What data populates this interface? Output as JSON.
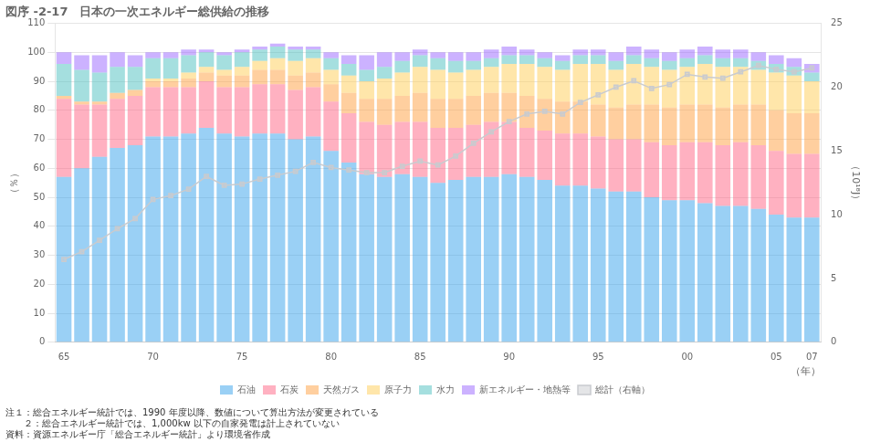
{
  "chart_data": {
    "type": "bar",
    "title": "図序 -2-17　日本の一次エネルギー総供給の推移",
    "x_label": "（年）",
    "y_label": "（％）",
    "y2_label": "（10¹⁸J）",
    "annotations": [
      "注１：総合エネルギー統計では、1990 年度以降、数値について算出方法が変更されている",
      "　　２：総合エネルギー統計では、1,000kw 以下の自家発電は計上されていない",
      "資料：資源エネルギー庁「総合エネルギー統計」より環境省作成"
    ],
    "categories": [
      "65",
      null,
      null,
      null,
      null,
      "70",
      null,
      null,
      null,
      null,
      "75",
      null,
      null,
      null,
      null,
      "80",
      null,
      null,
      null,
      null,
      "85",
      null,
      null,
      null,
      null,
      "90",
      null,
      null,
      null,
      null,
      "95",
      null,
      null,
      null,
      null,
      "00",
      null,
      null,
      null,
      null,
      "05",
      null,
      "07"
    ],
    "series": [
      {
        "name": "石油",
        "values": [
          57,
          60,
          64,
          67,
          68,
          71,
          71,
          72,
          74,
          72,
          71,
          72,
          72,
          70,
          71,
          66,
          62,
          58,
          57,
          58,
          57,
          55,
          56,
          57,
          57,
          58,
          57,
          56,
          54,
          54,
          53,
          52,
          52,
          50,
          49,
          49,
          48,
          47,
          47,
          46,
          44,
          43,
          43
        ]
      },
      {
        "name": "石炭",
        "values": [
          27,
          22,
          18,
          17,
          17,
          17,
          17,
          16,
          16,
          16,
          17,
          17,
          17,
          17,
          17,
          17,
          17,
          18,
          18,
          18,
          19,
          19,
          18,
          18,
          19,
          18,
          17,
          17,
          18,
          18,
          18,
          18,
          18,
          19,
          19,
          20,
          21,
          21,
          22,
          22,
          22,
          22,
          22
        ]
      },
      {
        "name": "天然ガス",
        "values": [
          1,
          1,
          1,
          2,
          2,
          2,
          2,
          3,
          3,
          4,
          4,
          5,
          5,
          5,
          5,
          6,
          7,
          8,
          9,
          9,
          10,
          10,
          10,
          10,
          10,
          10,
          11,
          11,
          11,
          11,
          11,
          11,
          12,
          13,
          13,
          13,
          13,
          13,
          13,
          14,
          14,
          14,
          14
        ]
      },
      {
        "name": "原子力",
        "values": [
          0,
          0,
          0,
          0,
          0,
          1,
          1,
          2,
          2,
          2,
          3,
          3,
          4,
          5,
          5,
          5,
          6,
          6,
          7,
          8,
          9,
          10,
          9,
          9,
          9,
          10,
          11,
          11,
          11,
          13,
          14,
          13,
          14,
          13,
          13,
          13,
          14,
          14,
          13,
          12,
          13,
          13,
          11
        ]
      },
      {
        "name": "水力",
        "values": [
          11,
          11,
          10,
          9,
          8,
          7,
          7,
          6,
          5,
          5,
          5,
          4,
          4,
          4,
          3,
          4,
          4,
          4,
          4,
          4,
          4,
          4,
          4,
          3,
          3,
          3,
          3,
          3,
          3,
          3,
          3,
          3,
          3,
          3,
          3,
          3,
          3,
          3,
          3,
          3,
          3,
          3,
          3
        ]
      },
      {
        "name": "新エネルギー・地熱等",
        "values": [
          4,
          5,
          6,
          5,
          4,
          2,
          2,
          2,
          1,
          1,
          1,
          1,
          1,
          1,
          1,
          2,
          3,
          5,
          5,
          3,
          2,
          2,
          3,
          3,
          3,
          3,
          2,
          2,
          2,
          2,
          2,
          3,
          3,
          3,
          3,
          3,
          3,
          3,
          3,
          3,
          3,
          3,
          3
        ]
      },
      {
        "name": "総計（右軸）",
        "type": "line",
        "axis": "y2",
        "marker": "square",
        "line_style": "solid",
        "values": [
          6.5,
          7.1,
          8.0,
          8.9,
          9.7,
          11.2,
          11.5,
          12.0,
          13.0,
          12.3,
          12.4,
          12.8,
          13.1,
          13.4,
          14.1,
          13.7,
          13.5,
          13.3,
          13.3,
          13.8,
          14.2,
          13.9,
          14.6,
          15.6,
          16.5,
          17.3,
          17.9,
          18.1,
          17.9,
          18.8,
          19.4,
          20.0,
          20.5,
          19.9,
          20.2,
          21.0,
          20.8,
          20.7,
          21.2,
          21.7,
          21.4,
          21.2,
          21.5
        ]
      }
    ],
    "stacked": true,
    "ylim": [
      0,
      110
    ],
    "yticks": [
      0,
      10,
      20,
      30,
      40,
      50,
      60,
      70,
      80,
      90,
      100,
      110
    ],
    "y2lim": [
      0,
      25
    ],
    "y2ticks": [
      0,
      5,
      10,
      15,
      20,
      25
    ],
    "grid": true,
    "legend": "bottom"
  }
}
